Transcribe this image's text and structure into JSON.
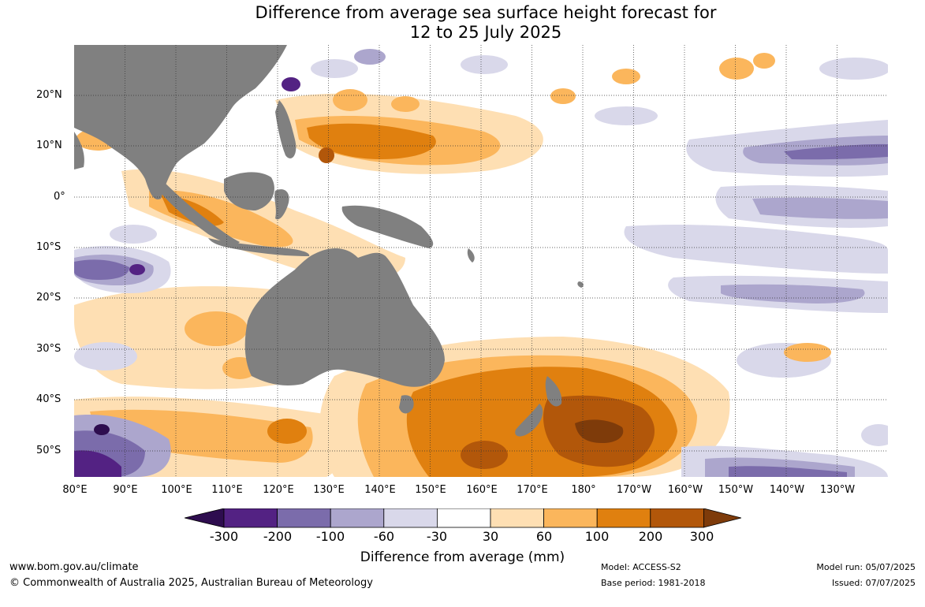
{
  "title_line1": "Difference from average sea surface height forecast for",
  "title_line2": "12 to 25 July 2025",
  "lat_labels": [
    "20°N",
    "10°N",
    "0°",
    "10°S",
    "20°S",
    "30°S",
    "40°S",
    "50°S"
  ],
  "lon_labels": [
    "80°E",
    "90°E",
    "100°E",
    "110°E",
    "120°E",
    "130°E",
    "140°E",
    "150°E",
    "160°E",
    "170°E",
    "180°",
    "170°W",
    "160°W",
    "150°W",
    "140°W",
    "130°W"
  ],
  "colorbar": {
    "title": "Difference from average (mm)",
    "tick_labels": [
      "-300",
      "-200",
      "-100",
      "-60",
      "-30",
      "30",
      "60",
      "100",
      "200",
      "300"
    ],
    "colors": {
      "below_-300": "#2e0d4f",
      "-300_to_-200": "#532283",
      "-200_to_-100": "#7b6cab",
      "-100_to_-60": "#aca6cd",
      "-60_to_-30": "#d9d8ea",
      "-30_to_30": "#ffffff",
      "30_to_60": "#fedfb3",
      "60_to_100": "#fbb65c",
      "100_to_200": "#e0800f",
      "200_to_300": "#b2570a",
      "above_300": "#7e3b0a"
    }
  },
  "land_color": "#808080",
  "footer": {
    "website": "www.bom.gov.au/climate",
    "copyright": "© Commonwealth of Australia 2025, Australian Bureau of Meteorology",
    "model": "Model: ACCESS-S2",
    "base_period": "Base period: 1981-2018",
    "model_run": "Model run: 05/07/2025",
    "issued": "Issued: 07/07/2025"
  }
}
